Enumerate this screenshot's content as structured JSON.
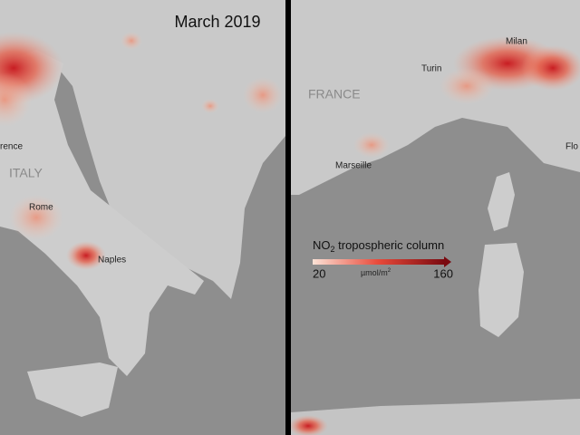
{
  "title": "March 2019",
  "left_panel": {
    "labels": {
      "country": "ITALY",
      "florence": "rence",
      "rome": "Rome",
      "naples": "Naples"
    }
  },
  "right_panel": {
    "labels": {
      "country": "FRANCE",
      "turin": "Turin",
      "milan": "Milan",
      "marseille": "Marseille",
      "florence": "Flo"
    }
  },
  "legend": {
    "title": "NO",
    "title_sub": "2",
    "title_rest": " tropospheric column",
    "min": 20,
    "max": 160,
    "unit": "µmol/m",
    "unit_sup": "2"
  }
}
